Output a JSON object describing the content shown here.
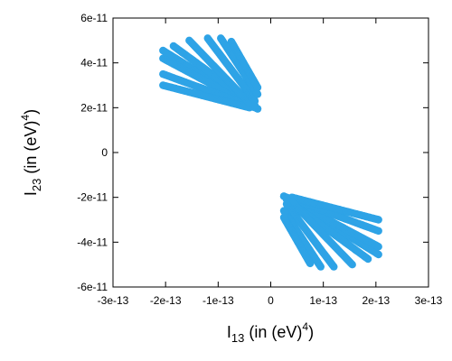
{
  "chart_data": {
    "type": "scatter",
    "title": "",
    "xlabel": {
      "main": "I",
      "sub": "13",
      "unit": " (in (eV)",
      "exp": "4",
      "close": ")"
    },
    "ylabel": {
      "main": "I",
      "sub": "23",
      "unit": " (in (eV)",
      "exp": "4",
      "close": ")"
    },
    "xlim": [
      -3e-13,
      3e-13
    ],
    "ylim": [
      -6e-11,
      6e-11
    ],
    "xticks": [
      -3e-13,
      -2e-13,
      -1e-13,
      0,
      1e-13,
      2e-13,
      3e-13
    ],
    "xtick_labels": [
      "-3e-13",
      "-2e-13",
      "-1e-13",
      "0",
      "1e-13",
      "2e-13",
      "3e-13"
    ],
    "yticks": [
      -6e-11,
      -4e-11,
      -2e-11,
      0,
      2e-11,
      4e-11,
      6e-11
    ],
    "ytick_labels": [
      "-6e-11",
      "-4e-11",
      "-2e-11",
      "0",
      "2e-11",
      "4e-11",
      "6e-11"
    ],
    "grid": false,
    "point_color": "#2ea3e6",
    "series": [
      {
        "strands": [
          [
            [
              -2.05e-13,
              4.55e-11
            ],
            [
              -2.5e-14,
              1.95e-11
            ]
          ],
          [
            [
              -2.05e-13,
              4.2e-11
            ],
            [
              -2.5e-14,
              1.95e-11
            ]
          ],
          [
            [
              -2.05e-13,
              3.5e-11
            ],
            [
              -3e-14,
              2e-11
            ]
          ],
          [
            [
              -2.05e-13,
              3e-11
            ],
            [
              -4e-14,
              2e-11
            ]
          ],
          [
            [
              -1.85e-13,
              4.75e-11
            ],
            [
              -3e-14,
              2.1e-11
            ]
          ],
          [
            [
              -1.55e-13,
              5e-11
            ],
            [
              -4e-14,
              2.2e-11
            ]
          ],
          [
            [
              -1.2e-13,
              5.1e-11
            ],
            [
              -3e-14,
              2.3e-11
            ]
          ],
          [
            [
              -9.5e-14,
              5.1e-11
            ],
            [
              -2.5e-14,
              2.6e-11
            ]
          ],
          [
            [
              -7.5e-14,
              4.95e-11
            ],
            [
              -2.5e-14,
              2.9e-11
            ]
          ]
        ]
      },
      {
        "strands": [
          [
            [
              2.05e-13,
              -4.55e-11
            ],
            [
              2.5e-14,
              -1.95e-11
            ]
          ],
          [
            [
              2.05e-13,
              -4.2e-11
            ],
            [
              2.5e-14,
              -1.95e-11
            ]
          ],
          [
            [
              2.05e-13,
              -3.5e-11
            ],
            [
              3e-14,
              -2e-11
            ]
          ],
          [
            [
              2.05e-13,
              -3e-11
            ],
            [
              4e-14,
              -2e-11
            ]
          ],
          [
            [
              1.85e-13,
              -4.75e-11
            ],
            [
              3e-14,
              -2.1e-11
            ]
          ],
          [
            [
              1.55e-13,
              -5e-11
            ],
            [
              4e-14,
              -2.2e-11
            ]
          ],
          [
            [
              1.2e-13,
              -5.1e-11
            ],
            [
              3e-14,
              -2.3e-11
            ]
          ],
          [
            [
              9.5e-14,
              -5.1e-11
            ],
            [
              2.5e-14,
              -2.6e-11
            ]
          ],
          [
            [
              7.5e-14,
              -4.95e-11
            ],
            [
              2.5e-14,
              -2.9e-11
            ]
          ]
        ]
      }
    ]
  }
}
